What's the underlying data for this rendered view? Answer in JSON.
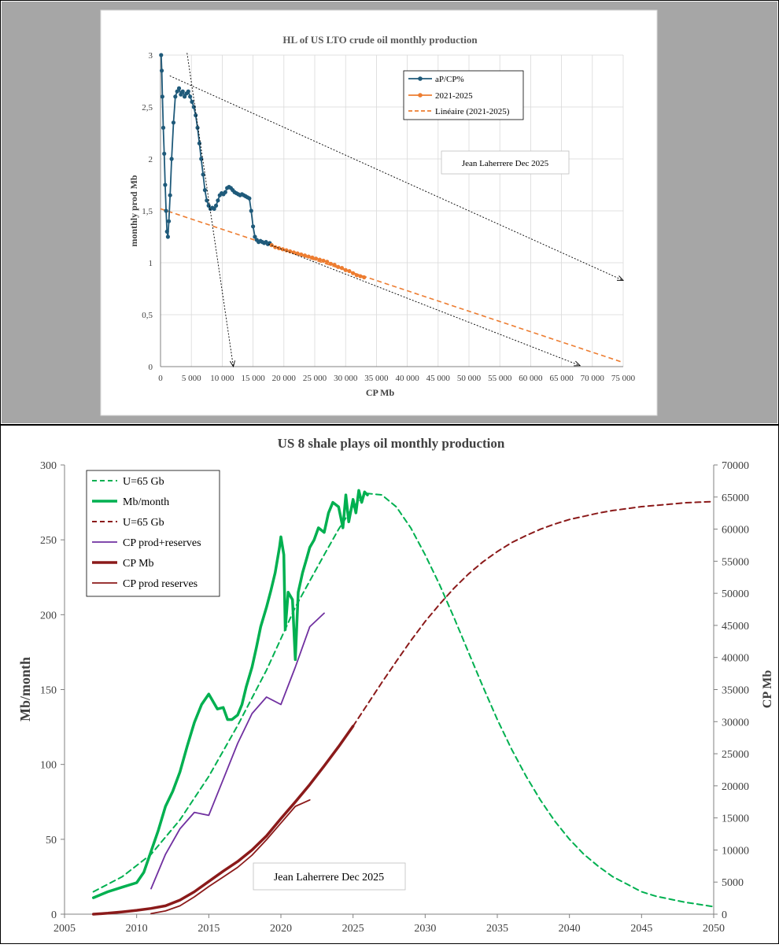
{
  "chart_data": [
    {
      "type": "scatter",
      "title": "HL of US LTO crude oil monthly production",
      "xlabel": "CP Mb",
      "ylabel": "monthly prod Mb",
      "xlim": [
        0,
        75000
      ],
      "ylim": [
        0,
        3
      ],
      "xticks": [
        0,
        5000,
        10000,
        15000,
        20000,
        25000,
        30000,
        35000,
        40000,
        45000,
        50000,
        55000,
        60000,
        65000,
        70000,
        75000
      ],
      "x_tick_labels": [
        "0",
        "5 000",
        "10 000",
        "15 000",
        "20 000",
        "25 000",
        "30 000",
        "35 000",
        "40 000",
        "45 000",
        "50 000",
        "55 000",
        "60 000",
        "65 000",
        "70 000",
        "75 000"
      ],
      "yticks": [
        0,
        0.5,
        1,
        1.5,
        2,
        2.5,
        3
      ],
      "y_tick_labels": [
        "0",
        "0,5",
        "1",
        "1,5",
        "2",
        "2,5",
        "3"
      ],
      "annotation": "Jean Laherrere Dec 2025",
      "legend_position": "top-right",
      "series": [
        {
          "name": "aP/CP%",
          "color": "#1f5a7a",
          "x": [
            100,
            200,
            300,
            450,
            600,
            750,
            900,
            1050,
            1200,
            1350,
            1550,
            1800,
            2100,
            2400,
            2700,
            3000,
            3300,
            3600,
            3900,
            4200,
            4500,
            4800,
            5100,
            5400,
            5700,
            6000,
            6300,
            6600,
            6900,
            7200,
            7500,
            7800,
            8100,
            8400,
            8700,
            9000,
            9300,
            9600,
            9900,
            10200,
            10500,
            10800,
            11100,
            11400,
            11700,
            12000,
            12300,
            12600,
            12900,
            13200,
            13500,
            13800,
            14100,
            14400,
            14700,
            15000,
            15300,
            15600,
            15900,
            16200,
            16500,
            16800,
            17100,
            17400,
            17700,
            18000
          ],
          "y": [
            3.0,
            2.85,
            2.6,
            2.3,
            2.05,
            1.75,
            1.5,
            1.3,
            1.25,
            1.4,
            1.65,
            2.0,
            2.35,
            2.6,
            2.65,
            2.68,
            2.62,
            2.65,
            2.6,
            2.63,
            2.65,
            2.6,
            2.55,
            2.5,
            2.42,
            2.3,
            2.15,
            2.0,
            1.85,
            1.7,
            1.6,
            1.55,
            1.52,
            1.53,
            1.52,
            1.55,
            1.6,
            1.65,
            1.67,
            1.66,
            1.68,
            1.72,
            1.73,
            1.72,
            1.7,
            1.68,
            1.67,
            1.66,
            1.65,
            1.66,
            1.65,
            1.64,
            1.63,
            1.62,
            1.5,
            1.35,
            1.25,
            1.22,
            1.2,
            1.21,
            1.2,
            1.19,
            1.2,
            1.18,
            1.19,
            1.17
          ]
        },
        {
          "name": "2021-2025",
          "color": "#ed7d31",
          "x": [
            18000,
            18600,
            19200,
            19800,
            20400,
            21000,
            21600,
            22200,
            22800,
            23400,
            24000,
            24600,
            25200,
            25800,
            26400,
            27000,
            27600,
            28200,
            28800,
            29400,
            30000,
            30600,
            31200,
            31800,
            32400,
            33000
          ],
          "y": [
            1.17,
            1.15,
            1.14,
            1.13,
            1.12,
            1.11,
            1.1,
            1.09,
            1.08,
            1.07,
            1.06,
            1.05,
            1.04,
            1.03,
            1.02,
            1.01,
            0.99,
            0.98,
            0.96,
            0.95,
            0.93,
            0.92,
            0.9,
            0.88,
            0.87,
            0.86
          ]
        },
        {
          "name": "Linéaire (2021-2025)",
          "color": "#ed7d31",
          "x": [
            0,
            75000
          ],
          "y": [
            1.52,
            0.04
          ]
        }
      ],
      "arrows": [
        {
          "from": [
            4300,
            3.02
          ],
          "to": [
            11800,
            0.0
          ]
        },
        {
          "from": [
            1500,
            2.8
          ],
          "to": [
            75000,
            0.83
          ]
        },
        {
          "from": [
            17500,
            1.18
          ],
          "to": [
            68000,
            0.01
          ]
        }
      ]
    },
    {
      "type": "line",
      "title": "US 8 shale plays oil monthly production",
      "xlabel": "",
      "ylabel": "Mb/month",
      "y2label": "CP  Mb",
      "xlim": [
        2005,
        2050
      ],
      "ylim": [
        0,
        300
      ],
      "y2lim": [
        0,
        70000
      ],
      "xticks": [
        2005,
        2010,
        2015,
        2020,
        2025,
        2030,
        2035,
        2040,
        2045,
        2050
      ],
      "yticks": [
        0,
        50,
        100,
        150,
        200,
        250,
        300
      ],
      "y2ticks": [
        0,
        5000,
        10000,
        15000,
        20000,
        25000,
        30000,
        35000,
        40000,
        45000,
        50000,
        55000,
        60000,
        65000,
        70000
      ],
      "annotation": "Jean Laherrere Dec 2025",
      "legend_position": "top-left",
      "series": [
        {
          "name": "U=65 Gb",
          "axis": "left",
          "style": "dashed",
          "color": "#00b050",
          "x": [
            2007,
            2009,
            2011,
            2013,
            2015,
            2017,
            2019,
            2021,
            2023,
            2024,
            2025,
            2026,
            2027,
            2028,
            2029,
            2030,
            2031,
            2032,
            2033,
            2034,
            2035,
            2036,
            2037,
            2038,
            2039,
            2040,
            2041,
            2042,
            2043,
            2044,
            2045,
            2046,
            2047,
            2048,
            2049,
            2050
          ],
          "y": [
            15,
            25,
            40,
            63,
            92,
            126,
            163,
            205,
            240,
            257,
            272,
            281,
            280,
            272,
            258,
            240,
            220,
            198,
            175,
            152,
            130,
            110,
            92,
            76,
            62,
            50,
            40,
            32,
            25,
            20,
            15,
            12,
            10,
            8,
            6.5,
            5
          ]
        },
        {
          "name": "Mb/month",
          "axis": "left",
          "style": "solid-thick",
          "color": "#00b050",
          "x": [
            2007,
            2008,
            2009,
            2010,
            2010.5,
            2011,
            2011.5,
            2012,
            2012.5,
            2013,
            2013.5,
            2014,
            2014.5,
            2015,
            2015.3,
            2015.6,
            2016,
            2016.3,
            2016.6,
            2017,
            2017.3,
            2017.6,
            2018,
            2018.3,
            2018.6,
            2019,
            2019.3,
            2019.6,
            2019.9,
            2020,
            2020.2,
            2020.3,
            2020.5,
            2020.8,
            2021,
            2021.2,
            2021.5,
            2021.8,
            2022,
            2022.3,
            2022.6,
            2023,
            2023.3,
            2023.6,
            2024,
            2024.3,
            2024.5,
            2024.7,
            2025,
            2025.2,
            2025.4,
            2025.6,
            2025.8,
            2026
          ],
          "y": [
            11,
            15,
            18,
            21,
            28,
            42,
            56,
            72,
            82,
            95,
            112,
            128,
            140,
            147,
            142,
            137,
            138,
            130,
            130,
            133,
            140,
            152,
            165,
            178,
            192,
            205,
            216,
            228,
            245,
            252,
            240,
            190,
            215,
            210,
            170,
            215,
            228,
            238,
            245,
            250,
            258,
            255,
            268,
            275,
            272,
            258,
            280,
            262,
            277,
            268,
            283,
            275,
            282,
            280
          ]
        },
        {
          "name": "U=65 Gb",
          "axis": "right",
          "style": "dashed",
          "color": "#8b1a1a",
          "x": [
            2025,
            2026,
            2027,
            2028,
            2029,
            2030,
            2031,
            2032,
            2033,
            2034,
            2035,
            2036,
            2037,
            2038,
            2039,
            2040,
            2041,
            2042,
            2043,
            2044,
            2045,
            2046,
            2047,
            2048,
            2049,
            2050
          ],
          "y": [
            29300,
            32700,
            36100,
            39400,
            42600,
            45600,
            48300,
            50800,
            53000,
            54900,
            56500,
            57900,
            59000,
            60000,
            60800,
            61500,
            62000,
            62500,
            62900,
            63200,
            63500,
            63700,
            63900,
            64100,
            64200,
            64300
          ]
        },
        {
          "name": "CP prod+reserves",
          "axis": "left",
          "style": "solid",
          "color": "#7030a0",
          "x": [
            2011,
            2012,
            2013,
            2014,
            2015,
            2016,
            2017,
            2018,
            2019,
            2020,
            2021,
            2022,
            2023
          ],
          "y": [
            17,
            40,
            57,
            68,
            66,
            90,
            114,
            134,
            145,
            140,
            165,
            192,
            201
          ]
        },
        {
          "name": "CP Mb",
          "axis": "right",
          "style": "solid-thick",
          "color": "#8b1a1a",
          "x": [
            2007,
            2008,
            2009,
            2010,
            2011,
            2012,
            2013,
            2014,
            2015,
            2016,
            2017,
            2018,
            2019,
            2020,
            2021,
            2022,
            2023,
            2024,
            2025
          ],
          "y": [
            0,
            150,
            350,
            600,
            900,
            1300,
            2200,
            3500,
            5100,
            6700,
            8200,
            10000,
            12200,
            14900,
            17500,
            20200,
            23100,
            26100,
            29300
          ]
        },
        {
          "name": "CP  prod reserves",
          "axis": "right",
          "style": "solid",
          "color": "#8b1a1a",
          "x": [
            2011,
            2012,
            2013,
            2014,
            2015,
            2016,
            2017,
            2018,
            2019,
            2020,
            2021,
            2022
          ],
          "y": [
            100,
            500,
            1300,
            2700,
            4300,
            5800,
            7300,
            9200,
            11600,
            14200,
            16800,
            17800
          ]
        }
      ]
    }
  ]
}
